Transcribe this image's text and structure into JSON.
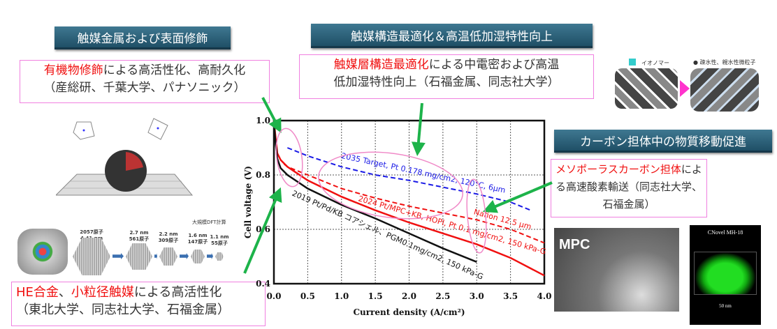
{
  "headers": {
    "catalyst_metal": "触媒金属および表面修飾",
    "catalyst_structure": "触媒構造最適化＆高温低加湿特性向上",
    "carbon_support": "カーボン担体中の物質移動促進"
  },
  "notes": {
    "organic": {
      "highlight": "有機物修飾",
      "rest": "による高活性化、高耐久化",
      "line2": "（産総研、千葉大学、パナソニック）"
    },
    "layer": {
      "highlight1": "触媒層構造",
      "highlight2": "最適化",
      "rest": "による中電密および高温",
      "line2": "低加湿特性向上（石福金属、同志社大学）"
    },
    "mesoporous": {
      "highlight": "メソポーラスカーボン担体",
      "rest": "によ",
      "line2": "る高速酸素輸送（同志社大学、",
      "line3": "石福金属）"
    },
    "he_alloy": {
      "highlight1": "HE",
      "highlight2": "合金",
      "sep": "、",
      "highlight3": "小粒径触媒",
      "rest": "による高活性化",
      "line2": "（東北大学、同志社大学、石福金属）"
    }
  },
  "figures": {
    "ionomer_label": "イオノマー",
    "particle_label": "疎水性、親水性微粒子",
    "mpc_label": "MPC",
    "cnovel_label": "CNovel MH-18",
    "scale_label": "50 nm",
    "dft_label": "大規模DFT計算",
    "clusters": [
      {
        "l1": "2057原子",
        "l2": "4.41 nm"
      },
      {
        "l1": "2.7 nm",
        "l2": "561原子"
      },
      {
        "l1": "2.2 nm",
        "l2": "309原子"
      },
      {
        "l1": "1.6 nm",
        "l2": "147原子"
      },
      {
        "l1": "1.1 nm",
        "l2": "55原子"
      }
    ]
  },
  "chart_data": {
    "type": "line",
    "xlabel": "Current density (A/cm²)",
    "ylabel": "Cell voltage (V)",
    "xlim": [
      0,
      4
    ],
    "ylim": [
      0.4,
      1.0
    ],
    "grid": true,
    "xticks": [
      "0.0",
      "0.5",
      "1.0",
      "1.5",
      "2.0",
      "2.5",
      "3.0",
      "3.5",
      "4.0"
    ],
    "yticks": [
      "0.4",
      "0.6",
      "0.8",
      "1.0"
    ],
    "series": [
      {
        "name": "2035 Target, Pt 0.178 mg/cm2, 120°C, 6μm",
        "color": "#1a1ae6",
        "dash": true,
        "x": [
          0.2,
          0.5,
          1.0,
          1.5,
          2.0,
          2.5,
          3.0,
          3.5,
          3.8
        ],
        "y": [
          0.9,
          0.87,
          0.83,
          0.8,
          0.78,
          0.755,
          0.73,
          0.7,
          0.67
        ]
      },
      {
        "name": "Nafion 12.5 μm",
        "color": "#f01010",
        "dash": true,
        "x": [
          0.15,
          0.2,
          0.5,
          1.0,
          1.5,
          2.0,
          2.5,
          3.0,
          3.5,
          4.0
        ],
        "y": [
          0.84,
          0.83,
          0.8,
          0.75,
          0.715,
          0.685,
          0.66,
          0.635,
          0.6,
          0.55
        ]
      },
      {
        "name": "2024 Pt/MPC+KB, HOPI, Pt 0.1 mg/cm2, 150 kPa-G",
        "color": "#f01010",
        "dash": false,
        "x": [
          0,
          0.02,
          0.05,
          0.1,
          0.2,
          0.5,
          1.0,
          1.5,
          2.0,
          2.5,
          3.0,
          3.5,
          4.0
        ],
        "y": [
          1.0,
          0.95,
          0.88,
          0.855,
          0.83,
          0.78,
          0.72,
          0.67,
          0.625,
          0.585,
          0.545,
          0.495,
          0.43
        ]
      },
      {
        "name": "2019 Pt/Pd/KB コアシェル、PGM0.1mg/cm2, 150 kPa-G",
        "color": "#111111",
        "dash": false,
        "x": [
          0,
          0.02,
          0.05,
          0.1,
          0.2,
          0.5,
          1.0,
          1.5,
          2.0,
          2.5,
          3.0
        ],
        "y": [
          1.0,
          0.93,
          0.86,
          0.825,
          0.8,
          0.75,
          0.69,
          0.64,
          0.585,
          0.53,
          0.48
        ]
      }
    ]
  }
}
